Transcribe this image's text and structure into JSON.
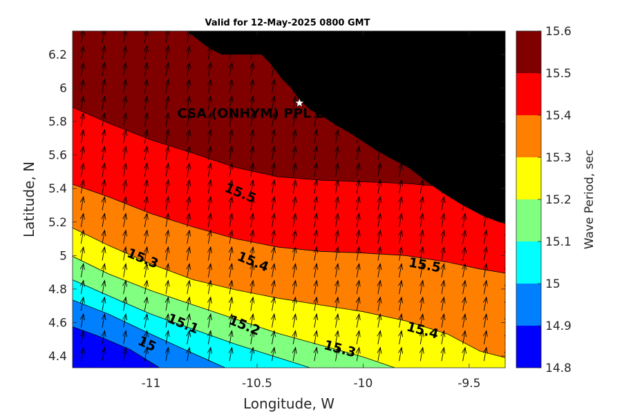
{
  "chart_data": {
    "type": "contour",
    "title": "Valid for 12-May-2025 0800 GMT",
    "xlabel": "Longitude, W",
    "ylabel": "Latitude, N",
    "xlim": [
      -11.37,
      -9.33
    ],
    "ylim": [
      4.33,
      6.34
    ],
    "x_ticks": [
      -11,
      -10.5,
      -10,
      -9.5
    ],
    "x_tick_labels": [
      "-11",
      "-10.5",
      "-10",
      "-9.5"
    ],
    "y_ticks": [
      4.4,
      4.6,
      4.8,
      5,
      5.2,
      5.4,
      5.6,
      5.8,
      6,
      6.2
    ],
    "y_tick_labels": [
      "4.4",
      "4.6",
      "4.8",
      "5",
      "5.2",
      "5.4",
      "5.6",
      "5.8",
      "6",
      "6.2"
    ],
    "colorbar": {
      "label": "Wave Period, sec",
      "levels": [
        14.8,
        14.9,
        15.0,
        15.1,
        15.2,
        15.3,
        15.4,
        15.5,
        15.6
      ],
      "tick_labels": [
        "14.8",
        "14.9",
        "15",
        "15.1",
        "15.2",
        "15.3",
        "15.4",
        "15.5",
        "15.6"
      ],
      "colors": [
        "#0000ff",
        "#0080ff",
        "#00ffff",
        "#80ff80",
        "#ffff00",
        "#ff8000",
        "#ff0000",
        "#800000"
      ]
    },
    "contour_lines": [
      {
        "level": 14.9,
        "points": [
          [
            -11.37,
            4.575
          ],
          [
            -11.25,
            4.52
          ],
          [
            -11.1,
            4.44
          ],
          [
            -10.96,
            4.33
          ]
        ]
      },
      {
        "level": 15.0,
        "points": [
          [
            -11.37,
            4.735
          ],
          [
            -11.2,
            4.65
          ],
          [
            -11.0,
            4.53
          ],
          [
            -10.8,
            4.415
          ],
          [
            -10.65,
            4.33
          ]
        ]
      },
      {
        "level": 15.1,
        "points": [
          [
            -11.37,
            4.855
          ],
          [
            -11.2,
            4.76
          ],
          [
            -11.0,
            4.65
          ],
          [
            -10.8,
            4.56
          ],
          [
            -10.6,
            4.47
          ],
          [
            -10.4,
            4.39
          ],
          [
            -10.25,
            4.33
          ]
        ]
      },
      {
        "level": 15.2,
        "points": [
          [
            -11.37,
            4.995
          ],
          [
            -11.2,
            4.89
          ],
          [
            -11.0,
            4.79
          ],
          [
            -10.8,
            4.705
          ],
          [
            -10.6,
            4.62
          ],
          [
            -10.4,
            4.535
          ],
          [
            -10.2,
            4.465
          ],
          [
            -10.0,
            4.395
          ],
          [
            -9.85,
            4.33
          ]
        ]
      },
      {
        "level": 15.3,
        "points": [
          [
            -11.37,
            5.165
          ],
          [
            -11.2,
            5.06
          ],
          [
            -11.0,
            4.95
          ],
          [
            -10.8,
            4.855
          ],
          [
            -10.6,
            4.795
          ],
          [
            -10.4,
            4.745
          ],
          [
            -10.2,
            4.705
          ],
          [
            -10.0,
            4.665
          ],
          [
            -9.8,
            4.61
          ],
          [
            -9.6,
            4.53
          ],
          [
            -9.45,
            4.43
          ],
          [
            -9.33,
            4.39
          ]
        ]
      },
      {
        "level": 15.4,
        "points": [
          [
            -11.37,
            5.425
          ],
          [
            -11.2,
            5.35
          ],
          [
            -11.0,
            5.25
          ],
          [
            -10.8,
            5.17
          ],
          [
            -10.6,
            5.1
          ],
          [
            -10.4,
            5.05
          ],
          [
            -10.2,
            5.025
          ],
          [
            -10.0,
            5.015
          ],
          [
            -9.8,
            5.0
          ],
          [
            -9.6,
            4.96
          ],
          [
            -9.45,
            4.92
          ],
          [
            -9.33,
            4.895
          ]
        ]
      },
      {
        "level": 15.5,
        "points": [
          [
            -11.37,
            5.885
          ],
          [
            -11.2,
            5.79
          ],
          [
            -11.0,
            5.69
          ],
          [
            -10.8,
            5.61
          ],
          [
            -10.6,
            5.525
          ],
          [
            -10.4,
            5.47
          ],
          [
            -10.2,
            5.45
          ],
          [
            -10.0,
            5.44
          ],
          [
            -9.8,
            5.43
          ],
          [
            -9.6,
            5.41
          ],
          [
            -9.45,
            5.39
          ],
          [
            -9.33,
            5.37
          ]
        ]
      }
    ],
    "contour_labels": [
      {
        "text": "15.5",
        "x": -10.58,
        "y": 5.37,
        "angle": 22
      },
      {
        "text": "15.4",
        "x": -10.52,
        "y": 4.96,
        "angle": 22
      },
      {
        "text": "15.5",
        "x": -9.71,
        "y": 4.94,
        "angle": 10
      },
      {
        "text": "15.3",
        "x": -11.04,
        "y": 4.98,
        "angle": 22
      },
      {
        "text": "15.4",
        "x": -9.72,
        "y": 4.55,
        "angle": 15
      },
      {
        "text": "15.2",
        "x": -10.56,
        "y": 4.58,
        "angle": 22
      },
      {
        "text": "15.3",
        "x": -10.11,
        "y": 4.44,
        "angle": 15
      },
      {
        "text": "15.1",
        "x": -10.85,
        "y": 4.59,
        "angle": 22
      },
      {
        "text": "15",
        "x": -11.02,
        "y": 4.47,
        "angle": 25
      }
    ],
    "land_mask": [
      [
        -11.02,
        6.34
      ],
      [
        -10.83,
        6.34
      ],
      [
        -10.8,
        6.31
      ],
      [
        -10.74,
        6.25
      ],
      [
        -10.67,
        6.2
      ],
      [
        -10.57,
        6.2
      ],
      [
        -10.48,
        6.2
      ],
      [
        -10.44,
        6.15
      ],
      [
        -10.41,
        6.1
      ],
      [
        -10.38,
        6.05
      ],
      [
        -10.34,
        6.0
      ],
      [
        -10.3,
        5.93
      ],
      [
        -10.25,
        5.87
      ],
      [
        -10.19,
        5.83
      ],
      [
        -10.13,
        5.78
      ],
      [
        -10.06,
        5.73
      ],
      [
        -10.0,
        5.68
      ],
      [
        -9.94,
        5.63
      ],
      [
        -9.87,
        5.58
      ],
      [
        -9.78,
        5.52
      ],
      [
        -9.7,
        5.44
      ],
      [
        -9.62,
        5.37
      ],
      [
        -9.53,
        5.3
      ],
      [
        -9.44,
        5.24
      ],
      [
        -9.36,
        5.2
      ],
      [
        -9.33,
        5.19
      ],
      [
        -9.33,
        6.34
      ]
    ],
    "land_outline": [
      [
        -10.76,
        6.34
      ],
      [
        -10.7,
        6.29
      ],
      [
        -10.62,
        6.25
      ],
      [
        -10.53,
        6.25
      ],
      [
        -10.45,
        6.22
      ],
      [
        -10.39,
        6.16
      ],
      [
        -10.33,
        6.09
      ],
      [
        -10.26,
        6.02
      ],
      [
        -10.2,
        5.96
      ],
      [
        -10.14,
        5.88
      ],
      [
        -10.06,
        5.82
      ],
      [
        -9.98,
        5.76
      ],
      [
        -9.9,
        5.7
      ],
      [
        -9.82,
        5.65
      ],
      [
        -9.73,
        5.59
      ],
      [
        -9.64,
        5.52
      ],
      [
        -9.55,
        5.45
      ],
      [
        -9.47,
        5.39
      ],
      [
        -9.4,
        5.33
      ],
      [
        -9.35,
        5.28
      ],
      [
        -9.33,
        5.26
      ],
      [
        -9.33,
        6.34
      ]
    ],
    "site": {
      "name": "CSA (ONHYM) PPL EBS",
      "lon": -10.3,
      "lat": 5.91
    },
    "vectors": {
      "lon_start": -11.33,
      "lon_step": 0.1,
      "lat_start": 4.37,
      "lat_step": 0.1,
      "direction_deg": 10,
      "length_deg": 0.082
    }
  }
}
